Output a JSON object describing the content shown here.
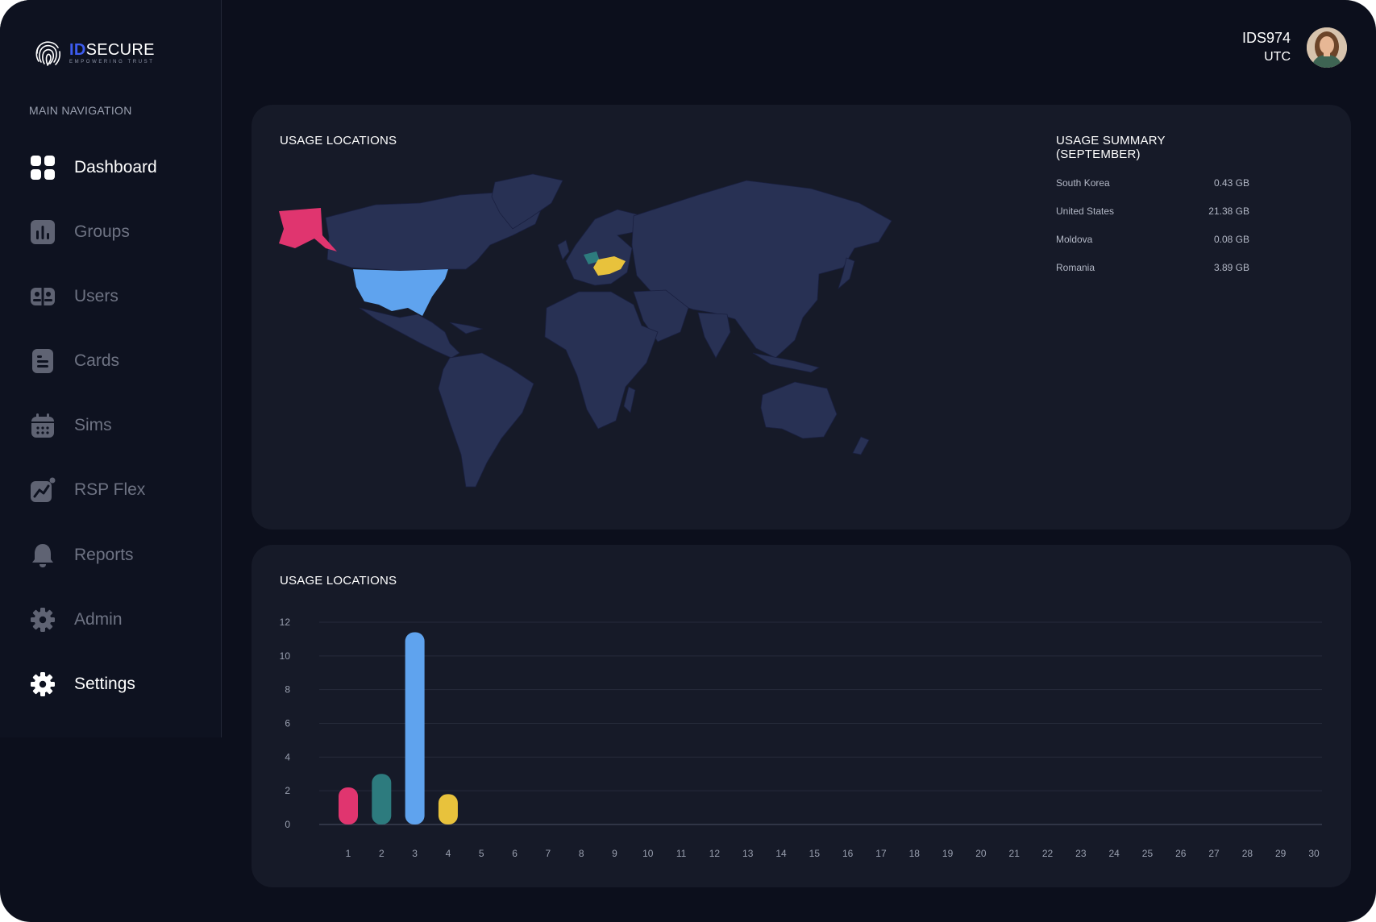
{
  "brand": {
    "id_part": "ID",
    "name_part": "SECURE",
    "tagline": "EMPOWERING TRUST"
  },
  "nav": {
    "heading": "MAIN NAVIGATION",
    "items": [
      {
        "label": "Dashboard",
        "icon": "dashboard-grid-icon",
        "active": true
      },
      {
        "label": "Groups",
        "icon": "bar-chart-icon",
        "active": false
      },
      {
        "label": "Users",
        "icon": "users-icon",
        "active": false
      },
      {
        "label": "Cards",
        "icon": "document-card-icon",
        "active": false
      },
      {
        "label": "Sims",
        "icon": "calendar-icon",
        "active": false
      },
      {
        "label": "RSP Flex",
        "icon": "trend-chart-icon",
        "active": false
      },
      {
        "label": "Reports",
        "icon": "bell-icon",
        "active": false
      },
      {
        "label": "Admin",
        "icon": "gear-icon",
        "active": false
      },
      {
        "label": "Settings",
        "icon": "settings-gear-icon",
        "active": true
      }
    ]
  },
  "user": {
    "id": "IDS974",
    "timezone": "UTC"
  },
  "map_panel": {
    "title": "USAGE LOCATIONS",
    "summary_title": "USAGE SUMMARY (SEPTEMBER)",
    "summary": [
      {
        "country": "South Korea",
        "usage": "0.43 GB"
      },
      {
        "country": "United States",
        "usage": "21.38 GB"
      },
      {
        "country": "Moldova",
        "usage": "0.08 GB"
      },
      {
        "country": "Romania",
        "usage": "3.89 GB"
      }
    ],
    "highlight_colors": {
      "alaska": "#e0356f",
      "united_states": "#5fa3ee",
      "central_europe": "#2d7b7e",
      "ukraine": "#e8c23c"
    },
    "land_color": "#283154"
  },
  "chart_panel": {
    "title": "USAGE LOCATIONS",
    "chart_data": {
      "type": "bar",
      "categories": [
        "1",
        "2",
        "3",
        "4",
        "5",
        "6",
        "7",
        "8",
        "9",
        "10",
        "11",
        "12",
        "13",
        "14",
        "15",
        "16",
        "17",
        "18",
        "19",
        "20",
        "21",
        "22",
        "23",
        "24",
        "25",
        "26",
        "27",
        "28",
        "29",
        "30"
      ],
      "values": [
        2.2,
        3.0,
        11.4,
        1.8,
        0,
        0,
        0,
        0,
        0,
        0,
        0,
        0,
        0,
        0,
        0,
        0,
        0,
        0,
        0,
        0,
        0,
        0,
        0,
        0,
        0,
        0,
        0,
        0,
        0,
        0
      ],
      "bar_colors": [
        "#e0356f",
        "#2d7b7e",
        "#5fa3ee",
        "#e8c23c"
      ],
      "yticks": [
        "0",
        "2",
        "4",
        "6",
        "8",
        "10",
        "12"
      ],
      "ylim": [
        0,
        12
      ],
      "grid": true,
      "xlabel": "",
      "ylabel": ""
    }
  }
}
